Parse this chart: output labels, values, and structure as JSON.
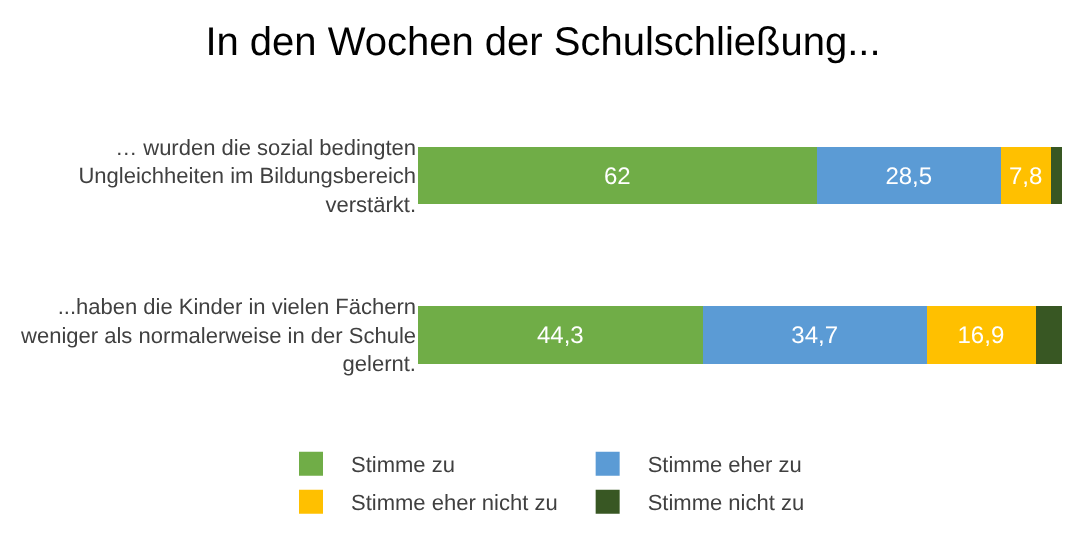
{
  "chart_data": {
    "type": "bar",
    "orientation": "horizontal",
    "stacked": true,
    "title": "In den Wochen der Schulschließung...",
    "categories": [
      "… wurden die sozial bedingten Ungleichheiten im Bildungsbereich verstärkt.",
      "...haben die Kinder in vielen Fächern weniger als normalerweise in der Schule gelernt."
    ],
    "series": [
      {
        "name": "Stimme zu",
        "color": "#70ad47",
        "values": [
          62,
          44.3
        ],
        "value_labels": [
          "62",
          "44,3"
        ]
      },
      {
        "name": "Stimme eher zu",
        "color": "#5b9bd5",
        "values": [
          28.5,
          34.7
        ],
        "value_labels": [
          "28,5",
          "34,7"
        ]
      },
      {
        "name": "Stimme eher nicht zu",
        "color": "#ffc000",
        "values": [
          7.8,
          16.9
        ],
        "value_labels": [
          "7,8",
          "16,9"
        ]
      },
      {
        "name": "Stimme nicht zu",
        "color": "#385723",
        "values": [
          1.7,
          4.1
        ],
        "value_labels": [
          null,
          null
        ]
      }
    ],
    "xlim": [
      0,
      100
    ],
    "tick_labels": "y",
    "legend": "bottom"
  }
}
